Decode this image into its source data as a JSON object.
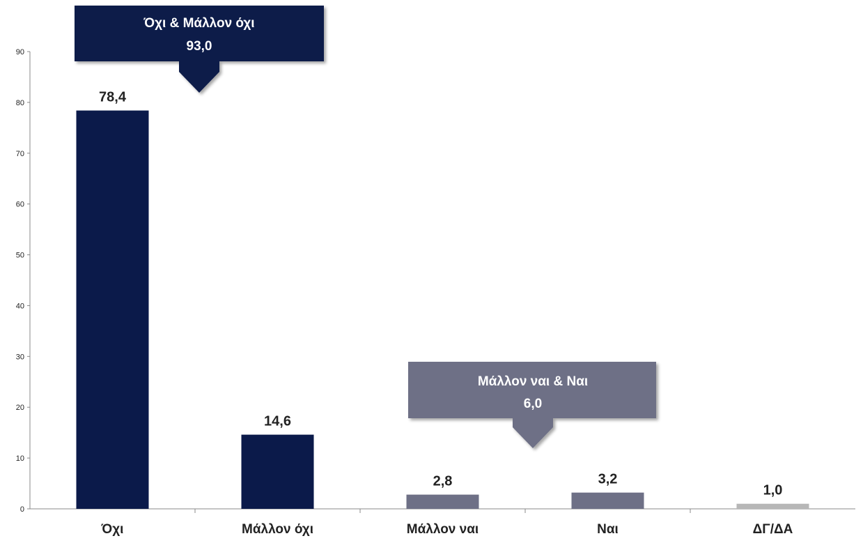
{
  "chart_data": {
    "type": "bar",
    "categories": [
      "Όχι",
      "Μάλλον όχι",
      "Μάλλον ναι",
      "Ναι",
      "ΔΓ/ΔΑ"
    ],
    "values": [
      78.4,
      14.6,
      2.8,
      3.2,
      1.0
    ],
    "value_labels": [
      "78,4",
      "14,6",
      "2,8",
      "3,2",
      "1,0"
    ],
    "bar_colors": [
      "#0b1a4a",
      "#0b1a4a",
      "#6e7086",
      "#6e7086",
      "#b7b7b7"
    ],
    "ylim": [
      0,
      90
    ],
    "yticks": [
      0,
      10,
      20,
      30,
      40,
      50,
      60,
      70,
      80,
      90
    ],
    "grid": false,
    "legend": "none",
    "annotations": [
      {
        "label": "Όχι & Μάλλον όχι",
        "value": "93,0",
        "color": "#0b1a4a"
      },
      {
        "label": "Μάλλον ναι & Ναι",
        "value": "6,0",
        "color": "#6e7086"
      }
    ]
  }
}
